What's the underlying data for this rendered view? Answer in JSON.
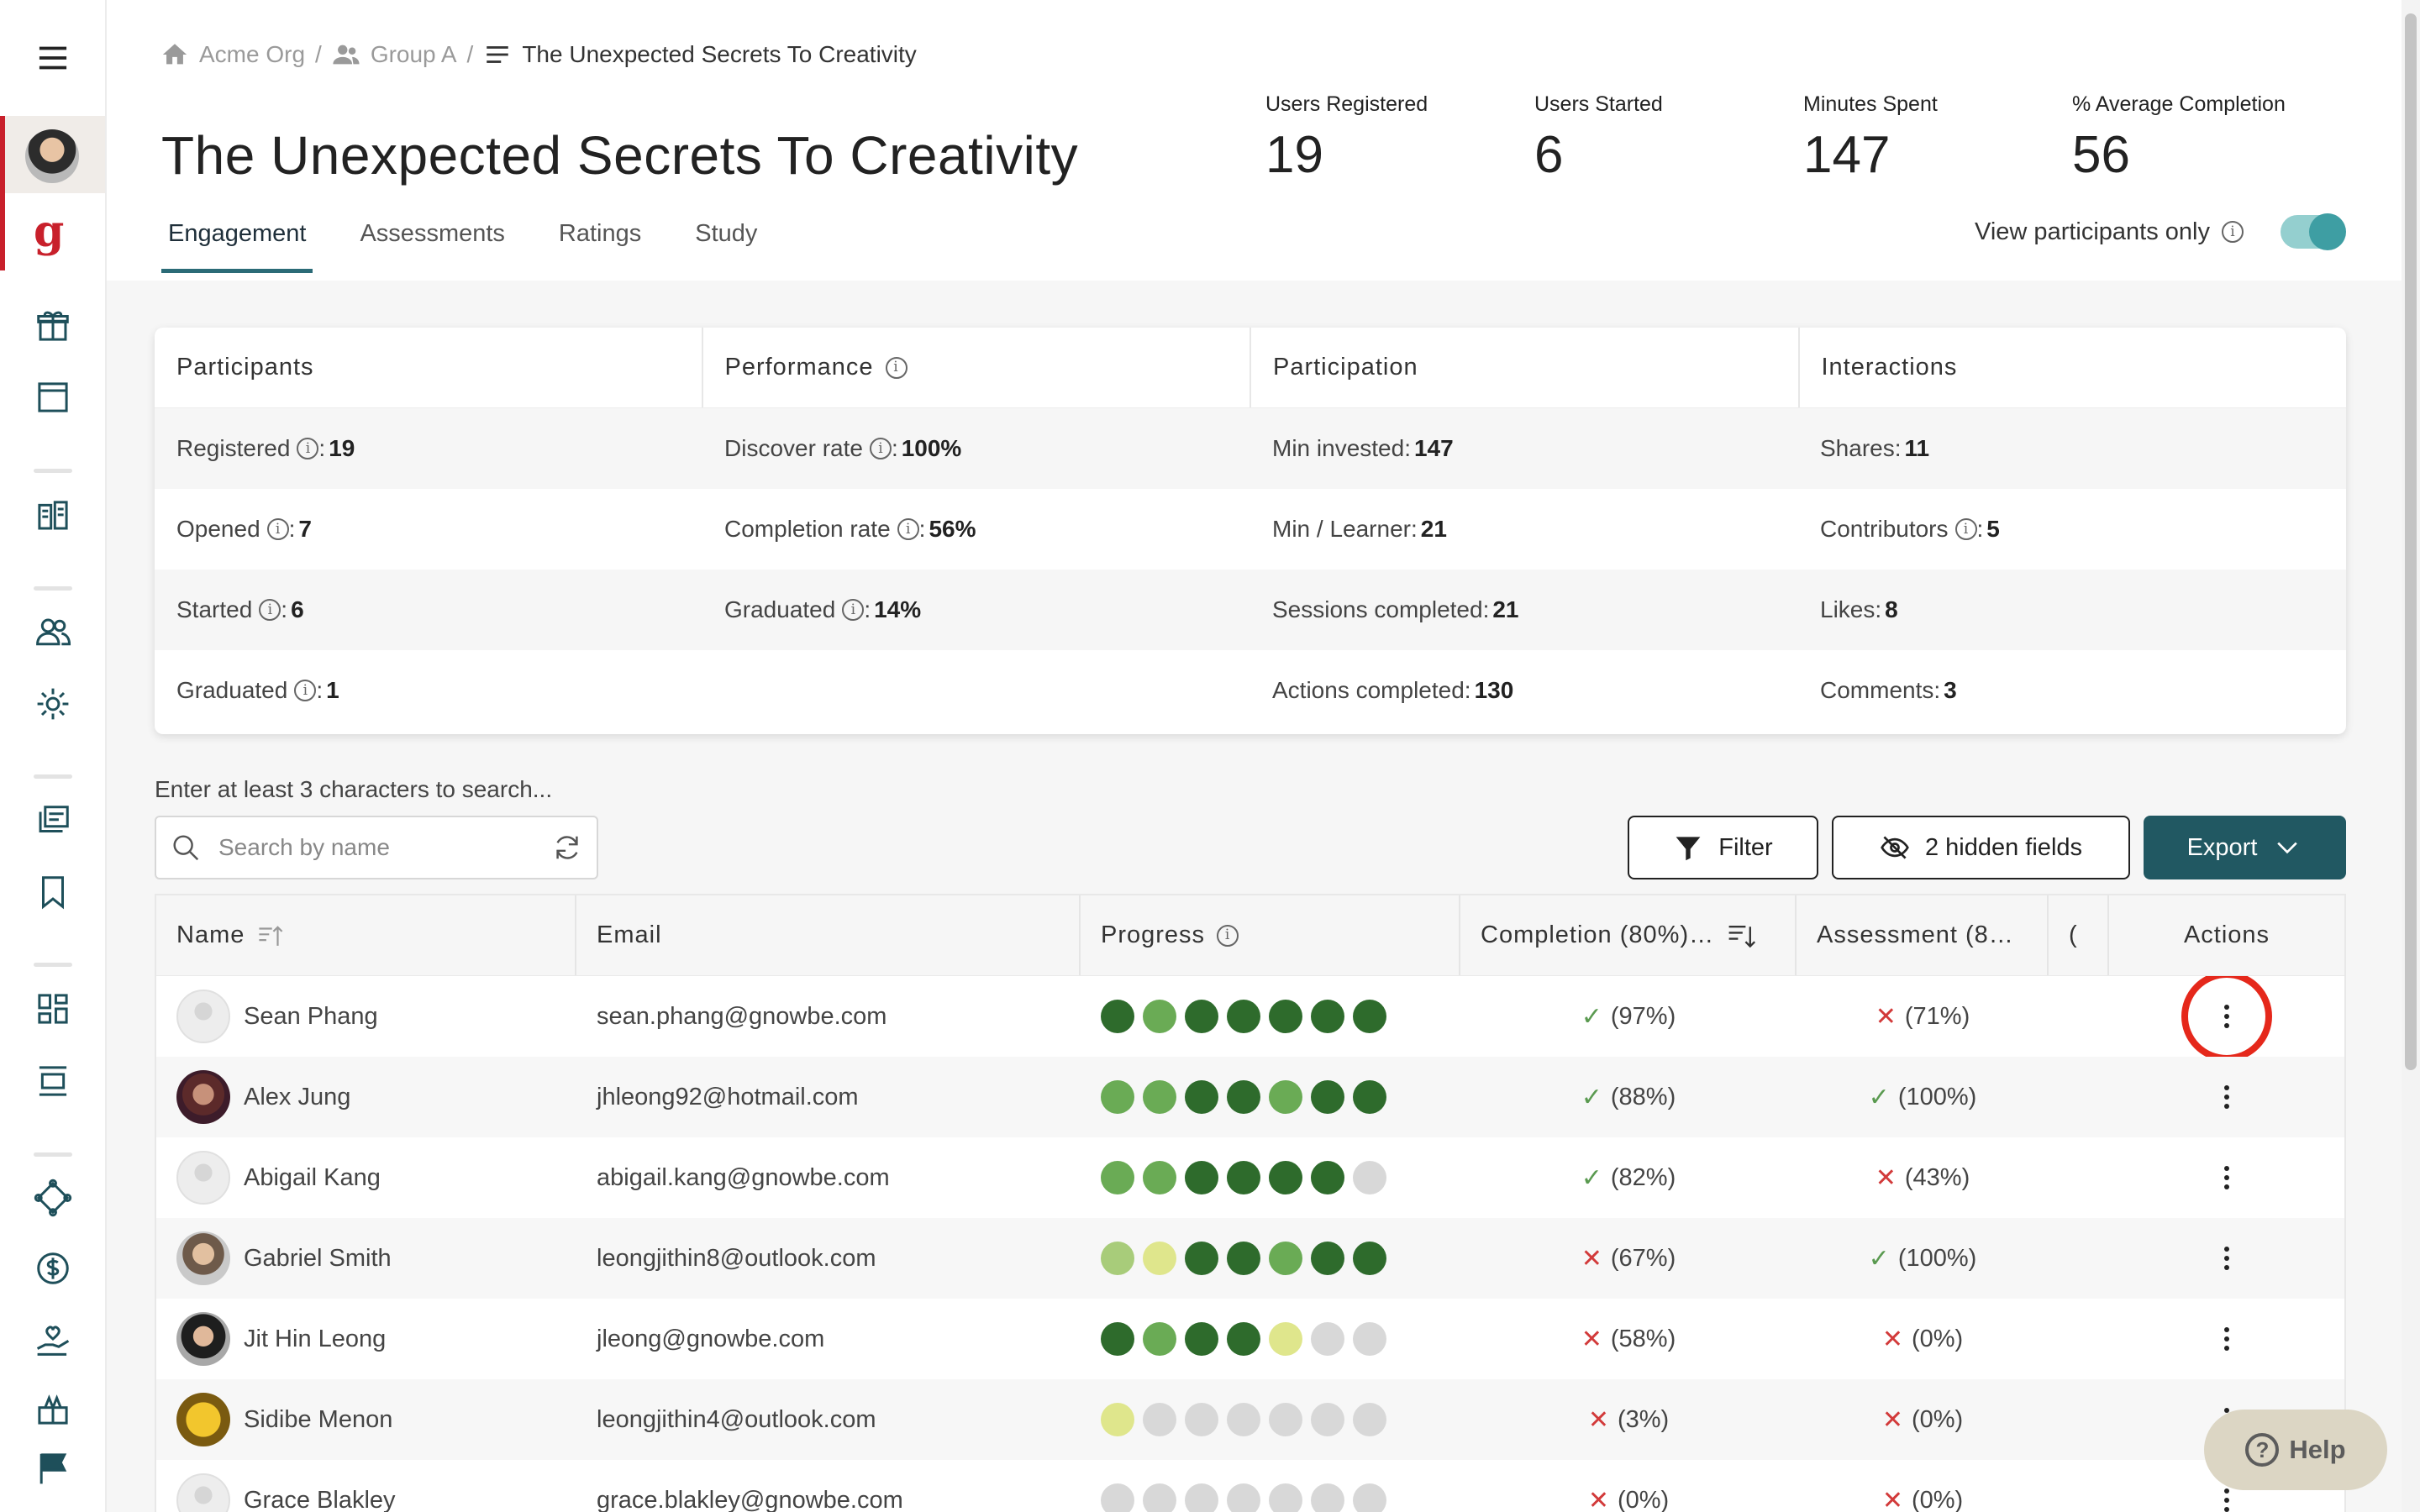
{
  "breadcrumb": {
    "org": "Acme Org",
    "group": "Group A",
    "current": "The Unexpected Secrets To Creativity",
    "separator": "/"
  },
  "page_title": "The Unexpected Secrets To Creativity",
  "stats": [
    {
      "label": "Users Registered",
      "value": "19"
    },
    {
      "label": "Users Started",
      "value": "6"
    },
    {
      "label": "Minutes Spent",
      "value": "147"
    },
    {
      "label": "% Average Completion",
      "value": "56"
    }
  ],
  "tabs": [
    "Engagement",
    "Assessments",
    "Ratings",
    "Study"
  ],
  "active_tab": "Engagement",
  "view_toggle": {
    "label": "View participants only",
    "on": true
  },
  "panel": {
    "headers": [
      "Participants",
      "Performance",
      "Participation",
      "Interactions"
    ],
    "rows": [
      [
        {
          "label": "Registered",
          "value": "19",
          "info": true
        },
        {
          "label": "Discover rate",
          "value": "100%",
          "info": true
        },
        {
          "label": "Min invested",
          "value": "147"
        },
        {
          "label": "Shares",
          "value": "11"
        }
      ],
      [
        {
          "label": "Opened",
          "value": "7",
          "info": true
        },
        {
          "label": "Completion rate",
          "value": "56%",
          "info": true
        },
        {
          "label": "Min / Learner",
          "value": "21"
        },
        {
          "label": "Contributors",
          "value": "5",
          "info": true
        }
      ],
      [
        {
          "label": "Started",
          "value": "6",
          "info": true
        },
        {
          "label": "Graduated",
          "value": "14%",
          "info": true
        },
        {
          "label": "Sessions completed",
          "value": "21"
        },
        {
          "label": "Likes",
          "value": "8"
        }
      ],
      [
        {
          "label": "Graduated",
          "value": "1",
          "info": true
        },
        null,
        {
          "label": "Actions completed",
          "value": "130"
        },
        {
          "label": "Comments",
          "value": "3"
        }
      ]
    ]
  },
  "search": {
    "hint": "Enter at least 3 characters to search...",
    "placeholder": "Search by name"
  },
  "toolbar": {
    "filter_label": "Filter",
    "hidden_fields_label": "2 hidden fields",
    "export_label": "Export"
  },
  "table": {
    "headers": {
      "name": "Name",
      "email": "Email",
      "progress": "Progress",
      "completion": "Completion (80%)…",
      "assessment": "Assessment (8…",
      "extra": "(",
      "actions": "Actions"
    },
    "colors": {
      "dark": "#2e6b2c",
      "medium": "#6aab55",
      "light": "#a8cc7a",
      "pale": "#dfe68c",
      "grey": "#d8d8d8"
    },
    "rows": [
      {
        "name": "Sean Phang",
        "email": "sean.phang@gnowbe.com",
        "avatar": "default",
        "progress": [
          "dark",
          "medium",
          "dark",
          "dark",
          "dark",
          "dark",
          "dark"
        ],
        "completion": {
          "pass": true,
          "text": "(97%)"
        },
        "assessment": {
          "pass": false,
          "text": "(71%)"
        },
        "highlighted": true
      },
      {
        "name": "Alex Jung",
        "email": "jhleong92@hotmail.com",
        "avatar": "alex",
        "progress": [
          "medium",
          "medium",
          "dark",
          "dark",
          "medium",
          "dark",
          "dark"
        ],
        "completion": {
          "pass": true,
          "text": "(88%)"
        },
        "assessment": {
          "pass": true,
          "text": "(100%)"
        }
      },
      {
        "name": "Abigail Kang",
        "email": "abigail.kang@gnowbe.com",
        "avatar": "default",
        "progress": [
          "medium",
          "medium",
          "dark",
          "dark",
          "dark",
          "dark",
          "grey"
        ],
        "completion": {
          "pass": true,
          "text": "(82%)"
        },
        "assessment": {
          "pass": false,
          "text": "(43%)"
        }
      },
      {
        "name": "Gabriel Smith",
        "email": "leongjithin8@outlook.com",
        "avatar": "gab",
        "progress": [
          "light",
          "pale",
          "dark",
          "dark",
          "medium",
          "dark",
          "dark"
        ],
        "completion": {
          "pass": false,
          "text": "(67%)"
        },
        "assessment": {
          "pass": true,
          "text": "(100%)"
        }
      },
      {
        "name": "Jit Hin Leong",
        "email": "jleong@gnowbe.com",
        "avatar": "jit",
        "progress": [
          "dark",
          "medium",
          "dark",
          "dark",
          "pale",
          "grey",
          "grey"
        ],
        "completion": {
          "pass": false,
          "text": "(58%)"
        },
        "assessment": {
          "pass": false,
          "text": "(0%)"
        }
      },
      {
        "name": "Sidibe Menon",
        "email": "leongjithin4@outlook.com",
        "avatar": "sid",
        "progress": [
          "pale",
          "grey",
          "grey",
          "grey",
          "grey",
          "grey",
          "grey"
        ],
        "completion": {
          "pass": false,
          "text": "(3%)"
        },
        "assessment": {
          "pass": false,
          "text": "(0%)"
        }
      },
      {
        "name": "Grace Blakley",
        "email": "grace.blakley@gnowbe.com",
        "avatar": "default",
        "progress": [
          "grey",
          "grey",
          "grey",
          "grey",
          "grey",
          "grey",
          "grey"
        ],
        "completion": {
          "pass": false,
          "text": "(0%)"
        },
        "assessment": {
          "pass": false,
          "text": "(0%)"
        }
      }
    ]
  },
  "help_label": "Help",
  "icons": {
    "menu": "hamburger-menu-icon",
    "brand": "g"
  }
}
